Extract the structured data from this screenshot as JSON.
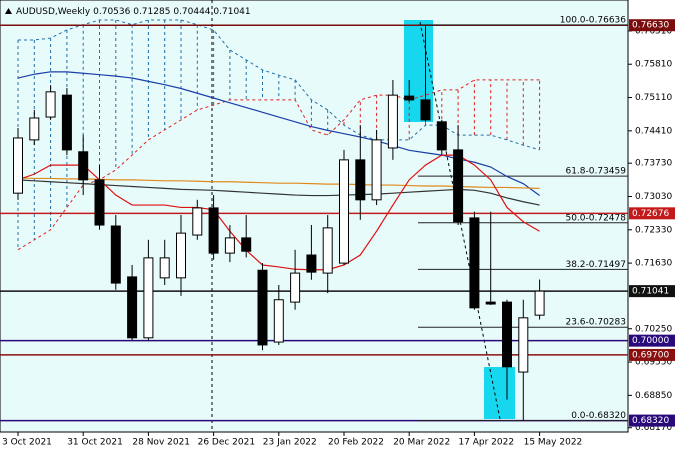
{
  "chart_data": {
    "type": "candlestick",
    "symbol": "AUDUSD,Weekly",
    "categories": [
      "3 Oct 2021",
      null,
      null,
      null,
      "31 Oct 2021",
      null,
      null,
      null,
      "28 Nov 2021",
      null,
      null,
      null,
      "26 Dec 2021",
      null,
      null,
      null,
      "23 Jan 2022",
      null,
      null,
      null,
      "20 Feb 2022",
      null,
      null,
      null,
      "20 Mar 2022",
      null,
      null,
      null,
      "17 Apr 2022",
      null,
      null,
      null,
      "15 May 2022"
    ],
    "open": [
      0.731,
      0.7422,
      0.747,
      0.7516,
      0.7397,
      0.7338,
      0.7241,
      0.7134,
      0.7006,
      0.7132,
      0.7132,
      0.7222,
      0.7279,
      0.7184,
      0.7216,
      0.7148,
      0.6997,
      0.7081,
      0.718,
      0.7142,
      0.7163,
      0.738,
      0.7296,
      0.7405,
      0.7514,
      0.7506,
      0.746,
      0.7401,
      0.7258,
      0.7081,
      0.7081,
      0.6934,
      0.70536
    ],
    "high": [
      0.7447,
      0.7485,
      0.7537,
      0.7531,
      0.7432,
      0.7369,
      0.7264,
      0.7159,
      0.7212,
      0.7212,
      0.7264,
      0.7296,
      0.7306,
      0.7243,
      0.7264,
      0.7163,
      0.7117,
      0.7191,
      0.7243,
      0.7264,
      0.7401,
      0.7453,
      0.7443,
      0.7548,
      0.7548,
      0.7663,
      0.7464,
      0.7453,
      0.7271,
      0.7271,
      0.7086,
      0.7086,
      0.71285
    ],
    "low": [
      0.7296,
      0.7411,
      0.7464,
      0.739,
      0.7306,
      0.7233,
      0.7107,
      0.7001,
      0.7001,
      0.7117,
      0.7094,
      0.7212,
      0.717,
      0.7165,
      0.7175,
      0.698,
      0.6991,
      0.7065,
      0.7128,
      0.71,
      0.7159,
      0.7254,
      0.7285,
      0.738,
      0.7502,
      0.746,
      0.739,
      0.7243,
      0.7065,
      0.7075,
      0.6876,
      0.6832,
      0.70444
    ],
    "close": [
      0.7426,
      0.7468,
      0.7523,
      0.7401,
      0.7338,
      0.7243,
      0.7121,
      0.7006,
      0.7174,
      0.7174,
      0.7226,
      0.7279,
      0.7184,
      0.7216,
      0.7188,
      0.6991,
      0.7086,
      0.7142,
      0.7144,
      0.7237,
      0.738,
      0.7296,
      0.7422,
      0.7516,
      0.7506,
      0.7464,
      0.7401,
      0.725,
      0.7069,
      0.7077,
      0.6945,
      0.7048,
      0.71041
    ],
    "cloud": {
      "color_a": "#1f6fa8",
      "color_b": "#e02020",
      "span_a": [
        0.7632,
        0.7632,
        0.7636,
        0.7653,
        0.7664,
        0.7674,
        0.7674,
        0.7664,
        0.7674,
        0.7674,
        0.7674,
        0.7664,
        0.7653,
        0.7611,
        0.759,
        0.7569,
        0.7558,
        0.7548,
        0.7506,
        0.7485,
        0.7453,
        0.7432,
        0.7422,
        0.7422,
        0.7422,
        0.7453,
        0.7453,
        0.7432,
        0.7432,
        0.7432,
        0.7422,
        0.7411,
        0.7401
      ],
      "span_b": [
        0.7191,
        0.7212,
        0.7233,
        0.728,
        0.7327,
        0.7338,
        0.7359,
        0.739,
        0.7422,
        0.7443,
        0.7464,
        0.7485,
        0.7495,
        0.7506,
        0.7506,
        0.7506,
        0.7506,
        0.7506,
        0.7443,
        0.7432,
        0.7464,
        0.7506,
        0.7516,
        0.7516,
        0.7506,
        0.7516,
        0.7527,
        0.7527,
        0.7548,
        0.7548,
        0.7548,
        0.7548,
        0.7548
      ]
    },
    "overlays": [
      {
        "color": "#1a3fa8",
        "values": [
          0.7552,
          0.756,
          0.7565,
          0.7565,
          0.7562,
          0.7559,
          0.7556,
          0.7552,
          0.7545,
          0.7538,
          0.753,
          0.752,
          0.751,
          0.75,
          0.749,
          0.748,
          0.747,
          0.746,
          0.745,
          0.7442,
          0.7435,
          0.7428,
          0.742,
          0.741,
          0.74,
          0.7395,
          0.739,
          0.7382,
          0.7375,
          0.7365,
          0.7345,
          0.733,
          0.7305
        ]
      },
      {
        "color": "#e08a1e",
        "values": [
          0.7342,
          0.7341,
          0.7341,
          0.734,
          0.734,
          0.7339,
          0.7338,
          0.7338,
          0.7337,
          0.7336,
          0.7336,
          0.7335,
          0.7334,
          0.7334,
          0.7333,
          0.7332,
          0.7331,
          0.7331,
          0.733,
          0.7329,
          0.7329,
          0.7328,
          0.7327,
          0.7327,
          0.7326,
          0.7325,
          0.7325,
          0.7324,
          0.7323,
          0.7322,
          0.7322,
          0.7321,
          0.732
        ]
      },
      {
        "color": "#333333",
        "values": [
          0.7338,
          0.7336,
          0.7334,
          0.7332,
          0.733,
          0.7328,
          0.7326,
          0.7324,
          0.7322,
          0.732,
          0.7318,
          0.7317,
          0.7316,
          0.7314,
          0.7312,
          0.731,
          0.7308,
          0.7306,
          0.7305,
          0.7305,
          0.7306,
          0.7307,
          0.7308,
          0.731,
          0.7312,
          0.7314,
          0.7316,
          0.7318,
          0.7316,
          0.731,
          0.73,
          0.7292,
          0.7285
        ]
      },
      {
        "color": "#e01010",
        "values": [
          0.7338,
          0.735,
          0.7369,
          0.7369,
          0.7369,
          0.7338,
          0.7306,
          0.7285,
          0.7285,
          0.7285,
          0.728,
          0.728,
          0.7275,
          0.723,
          0.719,
          0.7159,
          0.7155,
          0.715,
          0.7149,
          0.7149,
          0.7159,
          0.718,
          0.723,
          0.7285,
          0.7338,
          0.7369,
          0.739,
          0.739,
          0.7369,
          0.7338,
          0.728,
          0.725,
          0.723
        ]
      }
    ],
    "fib_levels": [
      {
        "value": 0.76636,
        "label": "100.0-0.76636"
      },
      {
        "value": 0.73459,
        "label": "61.8-0.73459"
      },
      {
        "value": 0.72478,
        "label": "50.0-0.72478"
      },
      {
        "value": 0.71497,
        "label": "38.2-0.71497"
      },
      {
        "value": 0.70283,
        "label": "23.6-0.70283"
      },
      {
        "value": 0.6832,
        "label": "0.0-0.68320"
      }
    ],
    "price_lines": [
      {
        "value": 0.7663,
        "label": "0.76630",
        "color": "#7a0c0c"
      },
      {
        "value": 0.72676,
        "label": "0.72676",
        "color": "#c21a1a"
      },
      {
        "value": 0.71041,
        "label": "0.71041",
        "color": "#111111"
      },
      {
        "value": 0.7,
        "label": "0.70000",
        "color": "#2a0a7a"
      },
      {
        "value": 0.697,
        "label": "0.69700",
        "color": "#8a1010"
      },
      {
        "value": 0.6832,
        "label": "0.68320",
        "color": "#2a0a7a"
      }
    ],
    "ylim": [
      0.6808,
      0.7716
    ],
    "yticks": [
      {
        "value": 0.7651,
        "label": "0.76510"
      },
      {
        "value": 0.7581,
        "label": "0.75810"
      },
      {
        "value": 0.7511,
        "label": "0.75110"
      },
      {
        "value": 0.7441,
        "label": "0.74410"
      },
      {
        "value": 0.7373,
        "label": "0.73730"
      },
      {
        "value": 0.7303,
        "label": "0.73030"
      },
      {
        "value": 0.7233,
        "label": "0.72330"
      },
      {
        "value": 0.7163,
        "label": "0.71630"
      },
      {
        "value": 0.7025,
        "label": "0.70250"
      },
      {
        "value": 0.6955,
        "label": "0.69550"
      },
      {
        "value": 0.6885,
        "label": "0.68850"
      },
      {
        "value": 0.6817,
        "label": "0.68170"
      }
    ]
  }
}
